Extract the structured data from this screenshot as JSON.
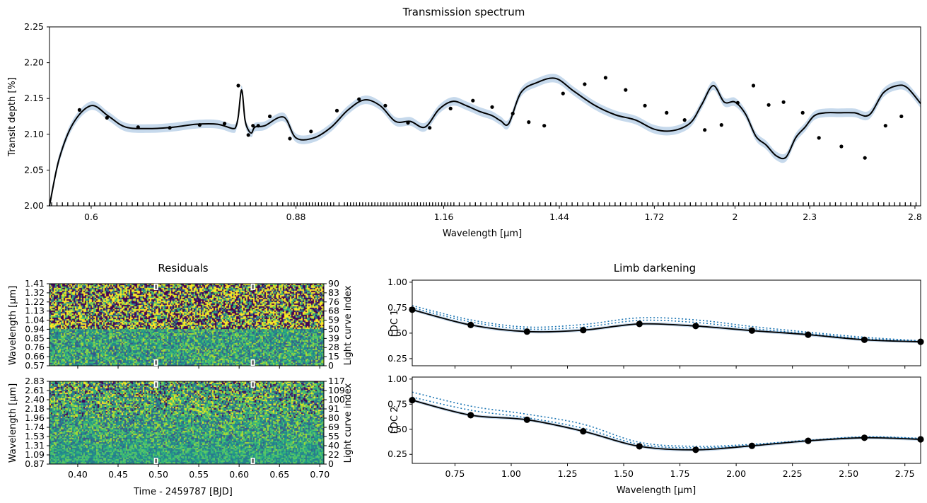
{
  "chart_data": [
    {
      "type": "line",
      "title": "Transmission spectrum",
      "xlabel": "Wavelength [μm]",
      "ylabel": "Transit depth [%]",
      "xscale": "log",
      "xlim": [
        0.555,
        2.83
      ],
      "ylim": [
        2.0,
        2.25
      ],
      "xticks": [
        0.6,
        0.88,
        1.16,
        1.44,
        1.72,
        2.0,
        2.3,
        2.8
      ],
      "yticks": [
        2.0,
        2.05,
        2.1,
        2.15,
        2.2,
        2.25
      ],
      "series": [
        {
          "x": [
            0.555,
            0.565,
            0.58,
            0.6,
            0.62,
            0.64,
            0.67,
            0.7,
            0.73,
            0.76,
            0.782,
            0.787,
            0.79,
            0.795,
            0.8,
            0.805,
            0.81,
            0.815,
            0.83,
            0.86,
            0.88,
            0.91,
            0.94,
            0.97,
            1.0,
            1.03,
            1.06,
            1.09,
            1.12,
            1.15,
            1.18,
            1.21,
            1.24,
            1.27,
            1.29,
            1.31,
            1.34,
            1.38,
            1.43,
            1.48,
            1.54,
            1.6,
            1.66,
            1.72,
            1.78,
            1.84,
            1.88,
            1.92,
            1.96,
            2.0,
            2.04,
            2.08,
            2.12,
            2.16,
            2.2,
            2.24,
            2.28,
            2.32,
            2.37,
            2.43,
            2.5,
            2.57,
            2.64,
            2.71,
            2.76,
            2.83
          ],
          "y": [
            2.0,
            2.065,
            2.115,
            2.14,
            2.125,
            2.11,
            2.108,
            2.11,
            2.114,
            2.114,
            2.108,
            2.112,
            2.125,
            2.162,
            2.12,
            2.106,
            2.102,
            2.11,
            2.112,
            2.124,
            2.095,
            2.095,
            2.11,
            2.134,
            2.148,
            2.14,
            2.118,
            2.118,
            2.11,
            2.135,
            2.146,
            2.14,
            2.132,
            2.126,
            2.119,
            2.115,
            2.158,
            2.172,
            2.178,
            2.16,
            2.14,
            2.127,
            2.12,
            2.107,
            2.105,
            2.116,
            2.142,
            2.168,
            2.145,
            2.145,
            2.128,
            2.097,
            2.085,
            2.07,
            2.068,
            2.095,
            2.11,
            2.126,
            2.13,
            2.13,
            2.13,
            2.127,
            2.158,
            2.168,
            2.165,
            2.143
          ]
        }
      ],
      "points_x": [
        0.587,
        0.618,
        0.655,
        0.695,
        0.735,
        0.77,
        0.79,
        0.805,
        0.812,
        0.82,
        0.838,
        0.87,
        0.905,
        0.95,
        0.99,
        1.04,
        1.085,
        1.13,
        1.175,
        1.225,
        1.27,
        1.32,
        1.36,
        1.4,
        1.45,
        1.51,
        1.57,
        1.63,
        1.69,
        1.76,
        1.82,
        1.89,
        1.95,
        2.01,
        2.07,
        2.13,
        2.19,
        2.27,
        2.34,
        2.44,
        2.55,
        2.65,
        2.73
      ],
      "points_y": [
        2.134,
        2.123,
        2.11,
        2.109,
        2.113,
        2.115,
        2.168,
        2.099,
        2.112,
        2.112,
        2.125,
        2.094,
        2.104,
        2.133,
        2.149,
        2.14,
        2.116,
        2.109,
        2.136,
        2.147,
        2.138,
        2.129,
        2.117,
        2.112,
        2.157,
        2.17,
        2.179,
        2.162,
        2.14,
        2.13,
        2.12,
        2.106,
        2.113,
        2.144,
        2.168,
        2.141,
        2.145,
        2.13,
        2.095,
        2.083,
        2.067,
        2.112,
        2.125
      ],
      "band_halfwidth": 0.006
    },
    {
      "type": "heatmap",
      "title": "Residuals",
      "panels": [
        {
          "ylabel": "Wavelength [μm]",
          "ylabel_right": "Light curve index",
          "yticks_left": [
            "0.57",
            "0.66",
            "0.76",
            "0.85",
            "0.94",
            "1.04",
            "1.13",
            "1.22",
            "1.32",
            "1.41"
          ],
          "yticks_right": [
            "0",
            "15",
            "28",
            "39",
            "50",
            "59",
            "68",
            "76",
            "83",
            "90"
          ]
        },
        {
          "ylabel": "Wavelength [μm]",
          "ylabel_right": "Light curve index",
          "yticks_left": [
            "0.87",
            "1.09",
            "1.31",
            "1.53",
            "1.74",
            "1.96",
            "2.18",
            "2.40",
            "2.61",
            "2.83"
          ],
          "yticks_right": [
            "0",
            "22",
            "40",
            "55",
            "69",
            "80",
            "91",
            "100",
            "109",
            "117"
          ]
        }
      ],
      "xlabel": "Time - 2459787 [BJD]",
      "xlim": [
        0.365,
        0.705
      ],
      "xticks": [
        "0.40",
        "0.45",
        "0.50",
        "0.55",
        "0.60",
        "0.65",
        "0.70"
      ],
      "markers_x": [
        0.497,
        0.617
      ]
    },
    {
      "type": "line",
      "title": "Limb darkening",
      "xlabel": "Wavelength [μm]",
      "xlim": [
        0.56,
        2.82
      ],
      "xticks": [
        0.75,
        1.0,
        1.25,
        1.5,
        1.75,
        2.0,
        2.25,
        2.5,
        2.75
      ],
      "panels": [
        {
          "ylabel": "LDC 1",
          "ylim": [
            0.18,
            1.02
          ],
          "yticks": [
            0.25,
            0.5,
            0.75,
            1.0
          ],
          "points": {
            "x": [
              0.56,
              0.82,
              1.07,
              1.32,
              1.57,
              1.82,
              2.07,
              2.32,
              2.57,
              2.82
            ],
            "y": [
              0.73,
              0.58,
              0.515,
              0.53,
              0.59,
              0.57,
              0.525,
              0.485,
              0.435,
              0.415
            ]
          },
          "dotted": [
            {
              "x": [
                0.56,
                0.82,
                1.07,
                1.32,
                1.57,
                1.82,
                2.07,
                2.32,
                2.57,
                2.82
              ],
              "y": [
                0.77,
                0.63,
                0.56,
                0.585,
                0.65,
                0.63,
                0.565,
                0.51,
                0.46,
                0.425
              ]
            },
            {
              "x": [
                0.56,
                0.82,
                1.07,
                1.32,
                1.57,
                1.82,
                2.07,
                2.32,
                2.57,
                2.82
              ],
              "y": [
                0.75,
                0.61,
                0.54,
                0.56,
                0.625,
                0.605,
                0.545,
                0.495,
                0.445,
                0.42
              ]
            }
          ]
        },
        {
          "ylabel": "LDC 2",
          "ylim": [
            0.16,
            1.02
          ],
          "yticks": [
            0.25,
            0.5,
            0.75,
            1.0
          ],
          "points": {
            "x": [
              0.56,
              0.82,
              1.07,
              1.32,
              1.57,
              1.82,
              2.07,
              2.32,
              2.57,
              2.82
            ],
            "y": [
              0.79,
              0.64,
              0.595,
              0.48,
              0.33,
              0.295,
              0.335,
              0.385,
              0.415,
              0.4
            ]
          },
          "dotted": [
            {
              "x": [
                0.56,
                0.82,
                1.07,
                1.32,
                1.57,
                1.82,
                2.07,
                2.32,
                2.57,
                2.82
              ],
              "y": [
                0.87,
                0.73,
                0.65,
                0.55,
                0.37,
                0.33,
                0.35,
                0.39,
                0.425,
                0.41
              ]
            },
            {
              "x": [
                0.56,
                0.82,
                1.07,
                1.32,
                1.57,
                1.82,
                2.07,
                2.32,
                2.57,
                2.82
              ],
              "y": [
                0.82,
                0.69,
                0.615,
                0.51,
                0.35,
                0.315,
                0.34,
                0.385,
                0.42,
                0.405
              ]
            }
          ]
        }
      ]
    }
  ],
  "colors": {
    "line": "#000000",
    "band": "#c6d9ec",
    "dotted": "#1f77b4",
    "heat_dark": "#440154",
    "heat_mid": "#21918c",
    "heat_bright": "#fde725"
  }
}
